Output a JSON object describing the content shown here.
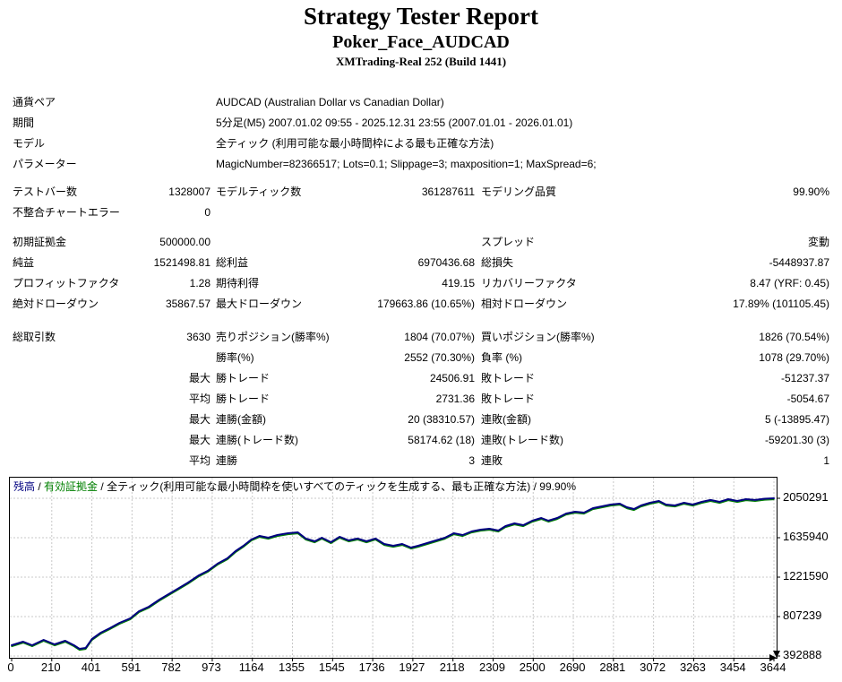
{
  "header": {
    "title": "Strategy Tester Report",
    "symbol": "Poker_Face_AUDCAD",
    "server": "XMTrading-Real 252 (Build 1441)"
  },
  "params": [
    [
      "通貨ペア",
      "AUDCAD (Australian Dollar vs Canadian Dollar)"
    ],
    [
      "期間",
      "5分足(M5) 2007.01.02 09:55 - 2025.12.31 23:55 (2007.01.01 - 2026.01.01)"
    ],
    [
      "モデル",
      "全ティック (利用可能な最小時間枠による最も正確な方法)"
    ],
    [
      "パラメーター",
      "MagicNumber=82366517; Lots=0.1; Slippage=3; maxposition=1; MaxSpread=6;"
    ]
  ],
  "stat_groups": [
    [
      [
        "テストバー数",
        "1328007",
        "モデルティック数",
        "361287611",
        "モデリング品質",
        "99.90%"
      ],
      [
        "不整合チャートエラー",
        "0",
        "",
        "",
        "",
        ""
      ]
    ],
    [
      [
        "初期証拠金",
        "500000.00",
        "",
        "",
        "スプレッド",
        "変動"
      ],
      [
        "純益",
        "1521498.81",
        "総利益",
        "6970436.68",
        "総損失",
        "-5448937.87"
      ],
      [
        "プロフィットファクタ",
        "1.28",
        "期待利得",
        "419.15",
        "リカバリーファクタ",
        "8.47 (YRF: 0.45)"
      ],
      [
        "絶対ドローダウン",
        "35867.57",
        "最大ドローダウン",
        "179663.86 (10.65%)",
        "相対ドローダウン",
        "17.89% (101105.45)"
      ]
    ],
    [
      [
        "総取引数",
        "3630",
        "売りポジション(勝率%)",
        "1804 (70.07%)",
        "買いポジション(勝率%)",
        "1826 (70.54%)"
      ],
      [
        "",
        "",
        "勝率(%)",
        "2552 (70.30%)",
        "負率 (%)",
        "1078 (29.70%)"
      ],
      [
        "",
        "最大",
        "勝トレード",
        "24506.91",
        "敗トレード",
        "-51237.37"
      ],
      [
        "",
        "平均",
        "勝トレード",
        "2731.36",
        "敗トレード",
        "-5054.67"
      ],
      [
        "",
        "最大",
        "連勝(金額)",
        "20 (38310.57)",
        "連敗(金額)",
        "5 (-13895.47)"
      ],
      [
        "",
        "最大",
        "連勝(トレード数)",
        "58174.62 (18)",
        "連敗(トレード数)",
        "-59201.30 (3)"
      ],
      [
        "",
        "平均",
        "連勝",
        "3",
        "連敗",
        "1"
      ]
    ]
  ],
  "legend": {
    "balance": "残高",
    "sep1": " / ",
    "equity": "有効証拠金",
    "sep2": " / ",
    "model": "全ティック(利用可能な最小時間枠を使いすべてのティックを生成する、最も正確な方法) / 99.90%"
  },
  "chart_data": {
    "type": "line",
    "title": "",
    "xlabel": "",
    "ylabel": "",
    "xlim": [
      0,
      3657
    ],
    "ylim": [
      355000,
      2267000
    ],
    "grid": true,
    "legend_position": "top-left-inside",
    "x_ticks": [
      0,
      210,
      401,
      591,
      782,
      973,
      1164,
      1355,
      1545,
      1736,
      1927,
      2118,
      2309,
      2500,
      2690,
      2881,
      3072,
      3263,
      3454,
      3644
    ],
    "y_ticks": [
      392888,
      807239,
      1221590,
      1635940,
      2050291
    ],
    "colors": {
      "balance": "#000080",
      "equity": "#008000",
      "grid": "#c8c8c8",
      "axis": "#000000"
    },
    "series": [
      {
        "name": "残高",
        "points": [
          [
            0,
            506000
          ],
          [
            55,
            544000
          ],
          [
            98,
            506000
          ],
          [
            153,
            562000
          ],
          [
            205,
            515000
          ],
          [
            256,
            553000
          ],
          [
            298,
            506000
          ],
          [
            324,
            468000
          ],
          [
            354,
            478000
          ],
          [
            384,
            572000
          ],
          [
            426,
            638000
          ],
          [
            469,
            685000
          ],
          [
            516,
            741000
          ],
          [
            567,
            788000
          ],
          [
            609,
            864000
          ],
          [
            656,
            911000
          ],
          [
            707,
            986000
          ],
          [
            750,
            1043000
          ],
          [
            801,
            1109000
          ],
          [
            844,
            1165000
          ],
          [
            895,
            1240000
          ],
          [
            938,
            1288000
          ],
          [
            984,
            1363000
          ],
          [
            1031,
            1419000
          ],
          [
            1070,
            1495000
          ],
          [
            1108,
            1551000
          ],
          [
            1146,
            1617000
          ],
          [
            1185,
            1655000
          ],
          [
            1227,
            1636000
          ],
          [
            1270,
            1664000
          ],
          [
            1321,
            1683000
          ],
          [
            1368,
            1692000
          ],
          [
            1406,
            1627000
          ],
          [
            1449,
            1598000
          ],
          [
            1483,
            1636000
          ],
          [
            1526,
            1589000
          ],
          [
            1568,
            1645000
          ],
          [
            1611,
            1608000
          ],
          [
            1654,
            1627000
          ],
          [
            1696,
            1598000
          ],
          [
            1739,
            1627000
          ],
          [
            1781,
            1570000
          ],
          [
            1824,
            1551000
          ],
          [
            1867,
            1570000
          ],
          [
            1909,
            1532000
          ],
          [
            1943,
            1551000
          ],
          [
            1986,
            1579000
          ],
          [
            2029,
            1608000
          ],
          [
            2071,
            1636000
          ],
          [
            2114,
            1683000
          ],
          [
            2156,
            1664000
          ],
          [
            2199,
            1702000
          ],
          [
            2242,
            1721000
          ],
          [
            2284,
            1730000
          ],
          [
            2327,
            1711000
          ],
          [
            2361,
            1758000
          ],
          [
            2404,
            1787000
          ],
          [
            2446,
            1768000
          ],
          [
            2489,
            1815000
          ],
          [
            2532,
            1843000
          ],
          [
            2566,
            1815000
          ],
          [
            2608,
            1843000
          ],
          [
            2651,
            1890000
          ],
          [
            2694,
            1909000
          ],
          [
            2736,
            1900000
          ],
          [
            2779,
            1947000
          ],
          [
            2822,
            1966000
          ],
          [
            2864,
            1984000
          ],
          [
            2907,
            1994000
          ],
          [
            2941,
            1956000
          ],
          [
            2975,
            1937000
          ],
          [
            3009,
            1975000
          ],
          [
            3052,
            2003000
          ],
          [
            3094,
            2022000
          ],
          [
            3128,
            1984000
          ],
          [
            3171,
            1975000
          ],
          [
            3214,
            2003000
          ],
          [
            3256,
            1984000
          ],
          [
            3299,
            2013000
          ],
          [
            3341,
            2032000
          ],
          [
            3384,
            2013000
          ],
          [
            3426,
            2041000
          ],
          [
            3469,
            2022000
          ],
          [
            3511,
            2041000
          ],
          [
            3554,
            2032000
          ],
          [
            3600,
            2046000
          ],
          [
            3644,
            2050291
          ]
        ]
      },
      {
        "name": "有効証拠金",
        "tracks_balance": true
      }
    ]
  }
}
